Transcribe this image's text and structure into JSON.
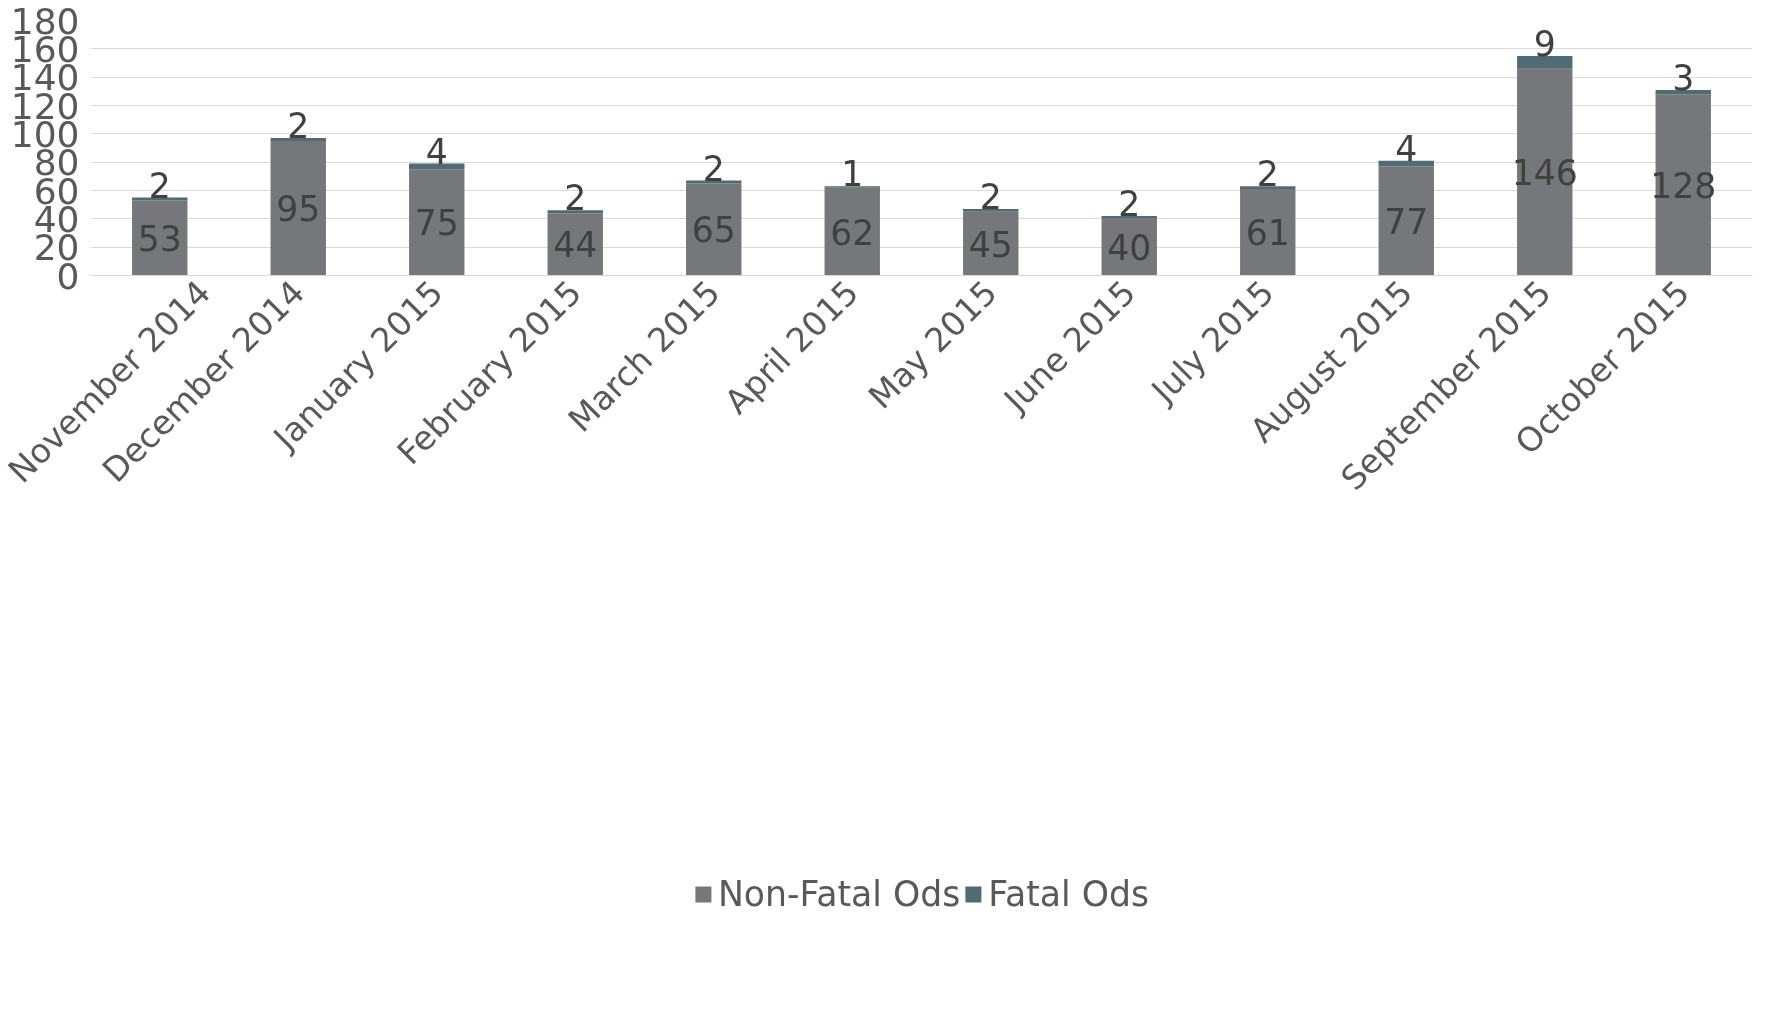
{
  "chart_data": {
    "type": "bar",
    "stacked": true,
    "categories": [
      "November 2014",
      "December 2014",
      "January 2015",
      "February 2015",
      "March 2015",
      "April 2015",
      "May 2015",
      "June 2015",
      "July 2015",
      "August 2015",
      "September 2015",
      "October 2015"
    ],
    "series": [
      {
        "name": "Non-Fatal Ods",
        "color": "#76777b",
        "values": [
          53,
          95,
          75,
          44,
          65,
          62,
          45,
          40,
          61,
          77,
          146,
          128
        ]
      },
      {
        "name": "Fatal Ods",
        "color": "#4f6b73",
        "values": [
          2,
          2,
          4,
          2,
          2,
          1,
          2,
          2,
          2,
          4,
          9,
          3
        ]
      }
    ],
    "ylim": [
      0,
      180
    ],
    "yticks": [
      0,
      20,
      40,
      60,
      80,
      100,
      120,
      140,
      160,
      180
    ],
    "grid": "y",
    "legend": "bottom",
    "data_labels": true
  }
}
